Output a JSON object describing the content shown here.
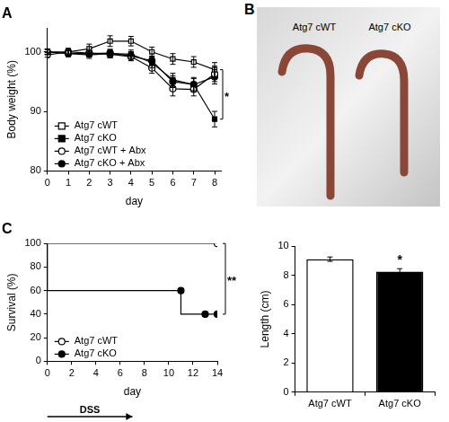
{
  "chart_data": [
    {
      "type": "line",
      "title": "A",
      "x_label": "day",
      "y_label": "Body weight (%)",
      "x": [
        0,
        1,
        2,
        3,
        4,
        5,
        6,
        7,
        8
      ],
      "xlim": [
        0,
        8.3
      ],
      "xticks": [
        0,
        1,
        2,
        3,
        4,
        5,
        6,
        7,
        8
      ],
      "ylim": [
        80,
        104
      ],
      "yticks": [
        80,
        90,
        100
      ],
      "grid": false,
      "legend": "lower left",
      "series": [
        {
          "name": "Atg7 cWT",
          "color": "#000000",
          "marker": "open_square",
          "values": [
            100,
            100,
            100.5,
            101.8,
            101.8,
            100,
            98.8,
            98.3,
            97
          ],
          "errors": [
            0.5,
            0.6,
            0.8,
            0.9,
            0.8,
            0.8,
            0.9,
            0.9,
            1.2
          ]
        },
        {
          "name": "Atg7 cKO",
          "color": "#000000",
          "marker": "square",
          "values": [
            100,
            99.7,
            99.5,
            99.7,
            99.6,
            98.2,
            95.3,
            94.5,
            88.7
          ],
          "errors": [
            0.4,
            0.5,
            0.6,
            0.7,
            0.7,
            0.9,
            1.1,
            1.2,
            1.3
          ]
        },
        {
          "name": "Atg7 cWT + Abx",
          "color": "#000000",
          "marker": "open_circle",
          "values": [
            99.5,
            100,
            99.8,
            99.6,
            99.2,
            97.3,
            93.8,
            93.7,
            96.3
          ],
          "errors": [
            0.4,
            0.5,
            0.6,
            0.6,
            0.7,
            0.9,
            1.2,
            1.1,
            1.3
          ]
        },
        {
          "name": "Atg7 cKO + Abx",
          "color": "#000000",
          "marker": "circle",
          "values": [
            100,
            99.7,
            99.7,
            99.8,
            99.3,
            98.5,
            95,
            94.5,
            95.8
          ],
          "errors": [
            0.4,
            0.5,
            0.5,
            0.6,
            0.7,
            0.8,
            1.0,
            1.0,
            1.2
          ]
        }
      ],
      "annotations": [
        {
          "text": "*",
          "x": 8,
          "between": [
            "Atg7 cWT",
            "Atg7 cKO"
          ]
        }
      ]
    },
    {
      "type": "line",
      "title": "C",
      "x_label": "day",
      "y_label": "Survival (%)",
      "line_style": "step",
      "x": [
        0,
        11,
        13,
        14
      ],
      "xlim": [
        0,
        14
      ],
      "xticks": [
        0,
        2,
        4,
        6,
        8,
        10,
        12,
        14
      ],
      "ylim": [
        0,
        100
      ],
      "yticks": [
        0,
        20,
        40,
        60,
        80,
        100
      ],
      "grid": false,
      "legend": "lower left",
      "series": [
        {
          "name": "Atg7 cWT",
          "color": "#000000",
          "marker": "open_circle",
          "values": [
            100,
            100,
            100,
            100
          ]
        },
        {
          "name": "Atg7 cKO",
          "color": "#000000",
          "marker": "circle",
          "values": [
            100,
            60,
            40,
            40
          ]
        }
      ],
      "annotations": [
        {
          "text": "**",
          "x": 14,
          "between": [
            "Atg7 cWT",
            "Atg7 cKO"
          ]
        },
        {
          "text": "DSS",
          "from": 0,
          "to": 7
        }
      ]
    },
    {
      "type": "bar",
      "y_label": "Length (cm)",
      "categories": [
        "Atg7 cWT",
        "Atg7 cKO"
      ],
      "values": [
        9.1,
        8.25
      ],
      "errors": [
        0.15,
        0.2
      ],
      "colors": [
        "#ffffff",
        "#000000"
      ],
      "ylim": [
        0,
        10
      ],
      "yticks": [
        0,
        2,
        4,
        6,
        8,
        10
      ],
      "grid": false,
      "annotations": [
        {
          "text": "*",
          "category": "Atg7 cKO"
        }
      ]
    }
  ],
  "photo": {
    "title": "B",
    "labels": [
      "Atg7 cWT",
      "Atg7 cKO"
    ]
  }
}
